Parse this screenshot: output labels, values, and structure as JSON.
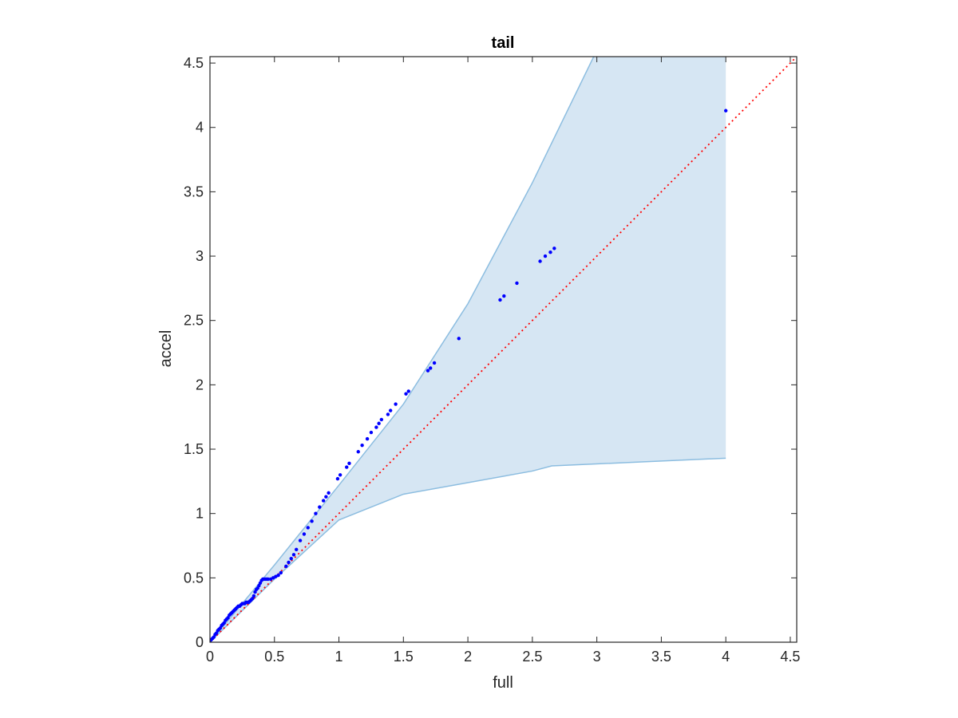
{
  "chart_data": {
    "type": "scatter",
    "title": "tail",
    "xlabel": "full",
    "ylabel": "accel",
    "xlim": [
      0,
      4.55
    ],
    "ylim": [
      0,
      4.55
    ],
    "xticks": [
      "0",
      "0.5",
      "1",
      "1.5",
      "2",
      "2.5",
      "3",
      "3.5",
      "4",
      "4.5"
    ],
    "yticks": [
      "0",
      "0.5",
      "1",
      "1.5",
      "2",
      "2.5",
      "3",
      "3.5",
      "4",
      "4.5"
    ],
    "xtick_values": [
      0,
      0.5,
      1,
      1.5,
      2,
      2.5,
      3,
      3.5,
      4,
      4.5
    ],
    "ytick_values": [
      0,
      0.5,
      1,
      1.5,
      2,
      2.5,
      3,
      3.5,
      4,
      4.5
    ],
    "grid": false,
    "band": {
      "upper": [
        [
          0,
          0
        ],
        [
          0.5,
          0.6
        ],
        [
          1,
          1.22
        ],
        [
          1.5,
          1.85
        ],
        [
          2,
          2.63
        ],
        [
          2.5,
          3.57
        ],
        [
          3,
          4.6
        ],
        [
          4,
          4.6
        ]
      ],
      "lower": [
        [
          0,
          0
        ],
        [
          0.5,
          0.49
        ],
        [
          1,
          0.95
        ],
        [
          1.5,
          1.15
        ],
        [
          2,
          1.24
        ],
        [
          2.5,
          1.33
        ],
        [
          2.65,
          1.37
        ],
        [
          4,
          1.43
        ]
      ],
      "fill_color": "#d6e6f3",
      "edge_color": "#8cbde0"
    },
    "reference_line": {
      "points": [
        [
          0,
          0
        ],
        [
          4.55,
          4.55
        ]
      ],
      "color": "#ff0000",
      "style": "dotted"
    },
    "series": [
      {
        "color": "#0000ff",
        "x": [
          0,
          0.01,
          0.02,
          0.03,
          0.04,
          0.05,
          0.06,
          0.07,
          0.08,
          0.09,
          0.1,
          0.11,
          0.12,
          0.13,
          0.14,
          0.15,
          0.16,
          0.17,
          0.18,
          0.19,
          0.2,
          0.21,
          0.22,
          0.23,
          0.24,
          0.25,
          0.26,
          0.27,
          0.28,
          0.29,
          0.3,
          0.31,
          0.32,
          0.33,
          0.34,
          0.35,
          0.36,
          0.37,
          0.38,
          0.39,
          0.4,
          0.41,
          0.42,
          0.43,
          0.44,
          0.45,
          0.47,
          0.49,
          0.51,
          0.53,
          0.55,
          0.59,
          0.61,
          0.63,
          0.65,
          0.67,
          0.7,
          0.73,
          0.76,
          0.79,
          0.82,
          0.85,
          0.88,
          0.9,
          0.92,
          0.99,
          1.01,
          1.06,
          1.08,
          1.15,
          1.18,
          1.22,
          1.25,
          1.29,
          1.31,
          1.33,
          1.38,
          1.4,
          1.44,
          1.52,
          1.54,
          1.69,
          1.71,
          1.74,
          1.93,
          2.25,
          2.28,
          2.38,
          2.56,
          2.6,
          2.64,
          2.67,
          4.0
        ],
        "y": [
          0,
          0.02,
          0.03,
          0.04,
          0.06,
          0.07,
          0.09,
          0.1,
          0.11,
          0.13,
          0.14,
          0.15,
          0.17,
          0.18,
          0.19,
          0.21,
          0.22,
          0.23,
          0.24,
          0.25,
          0.26,
          0.27,
          0.28,
          0.28,
          0.29,
          0.3,
          0.3,
          0.3,
          0.31,
          0.31,
          0.31,
          0.32,
          0.33,
          0.34,
          0.36,
          0.39,
          0.41,
          0.42,
          0.44,
          0.46,
          0.48,
          0.49,
          0.49,
          0.49,
          0.49,
          0.49,
          0.49,
          0.5,
          0.51,
          0.52,
          0.54,
          0.59,
          0.62,
          0.65,
          0.68,
          0.72,
          0.79,
          0.84,
          0.89,
          0.94,
          1.0,
          1.05,
          1.1,
          1.13,
          1.16,
          1.27,
          1.3,
          1.36,
          1.39,
          1.48,
          1.53,
          1.58,
          1.63,
          1.67,
          1.7,
          1.73,
          1.77,
          1.8,
          1.85,
          1.93,
          1.95,
          2.11,
          2.13,
          2.17,
          2.36,
          2.66,
          2.69,
          2.79,
          2.96,
          3.0,
          3.03,
          3.06,
          4.13
        ]
      }
    ]
  }
}
